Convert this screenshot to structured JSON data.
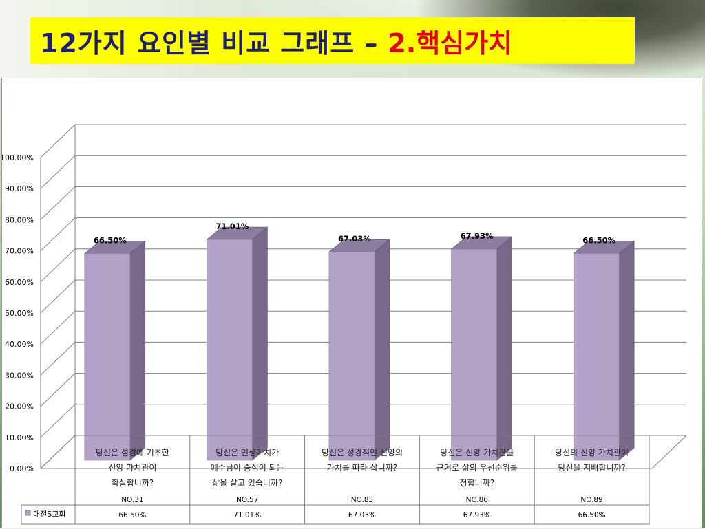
{
  "slide": {
    "title_main": "12가지 요인별 비교 그래프 –",
    "title_accent": "2.핵심가치"
  },
  "chart_data": {
    "type": "bar",
    "title": "",
    "xlabel": "",
    "ylabel": "",
    "ylim": [
      0,
      100
    ],
    "yticks": [
      "0.00%",
      "10.00%",
      "20.00%",
      "30.00%",
      "40.00%",
      "50.00%",
      "60.00%",
      "70.00%",
      "80.00%",
      "90.00%",
      "100.00%"
    ],
    "categories": [
      {
        "lines": [
          "당신은 성경에 기초한",
          "신앙 가치관이",
          "확실합니까?"
        ],
        "code": "NO.31"
      },
      {
        "lines": [
          "당신은 인생가치가",
          "예수님이 중심이 되는",
          "삶을 살고 있습니까?"
        ],
        "code": "NO.57"
      },
      {
        "lines": [
          "당신은 성경적인 신앙의",
          "가치를 따라 삽니까?"
        ],
        "code": "NO.83"
      },
      {
        "lines": [
          "당신은 신앙 가치관을",
          "근거로 삶의 우선순위를",
          "정합니까?"
        ],
        "code": "NO.86"
      },
      {
        "lines": [
          "당신의 신앙 가치관이",
          "당신을 지배합니까?"
        ],
        "code": "NO.89"
      }
    ],
    "series": [
      {
        "name": "대전S교회",
        "values": [
          66.5,
          71.01,
          67.03,
          67.93,
          66.5
        ],
        "labels": [
          "66.50%",
          "71.01%",
          "67.03%",
          "67.93%",
          "66.50%"
        ]
      }
    ],
    "colors": {
      "bar_front": "#b3a2c8",
      "bar_side": "#766a88",
      "bar_top": "#8c7da0",
      "grid": "#808080"
    },
    "grid": true,
    "legend": "data-table-row"
  }
}
